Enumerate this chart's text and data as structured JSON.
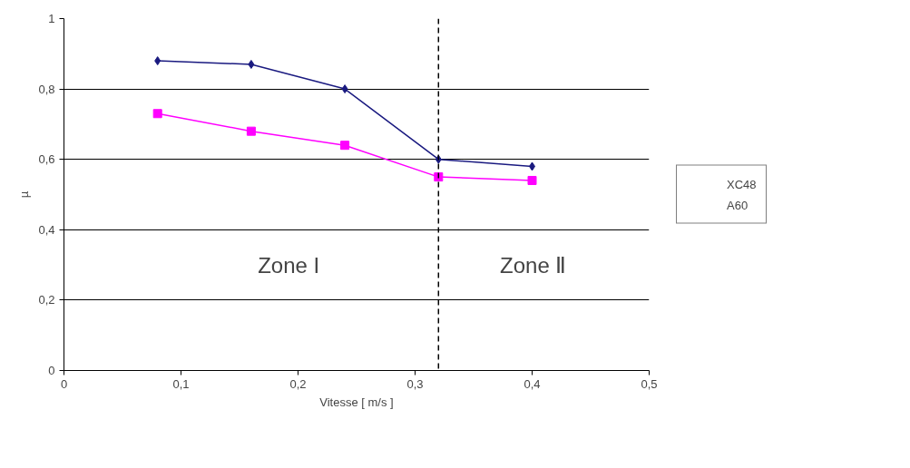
{
  "chart_data": {
    "type": "line",
    "xlabel": "Vitesse [ m/s ]",
    "ylabel": "µ",
    "x": [
      0.08,
      0.16,
      0.24,
      0.32,
      0.4
    ],
    "series": [
      {
        "name": "XC48",
        "color": "#1a1a80",
        "marker": "diamond",
        "values": [
          0.88,
          0.87,
          0.8,
          0.6,
          0.58
        ]
      },
      {
        "name": "A60",
        "color": "#ff00ff",
        "marker": "square",
        "values": [
          0.73,
          0.68,
          0.64,
          0.55,
          0.54
        ]
      }
    ],
    "xlim": [
      0,
      0.5
    ],
    "xticks": [
      0,
      {
        "value": 0.1,
        "label": "0,1"
      },
      {
        "value": 0.2,
        "label": "0,2"
      },
      {
        "value": 0.3,
        "label": "0,3"
      },
      {
        "value": 0.4,
        "label": "0,4"
      },
      {
        "value": 0.5,
        "label": "0,5"
      }
    ],
    "ylim": [
      0,
      1
    ],
    "yticks": [
      0,
      {
        "value": 0.2,
        "label": "0,2"
      },
      {
        "value": 0.4,
        "label": "0,4"
      },
      {
        "value": 0.6,
        "label": "0,6"
      },
      {
        "value": 0.8,
        "label": "0,8"
      },
      1
    ],
    "grid": "y",
    "legend": "right",
    "line_style": "solid",
    "ref_lines": [
      {
        "axis": "x",
        "value": 0.32,
        "label": null,
        "color": "#000000",
        "line_style": "dashed"
      }
    ],
    "annotations": [
      "Zone I",
      "Zone Ⅱ"
    ]
  }
}
